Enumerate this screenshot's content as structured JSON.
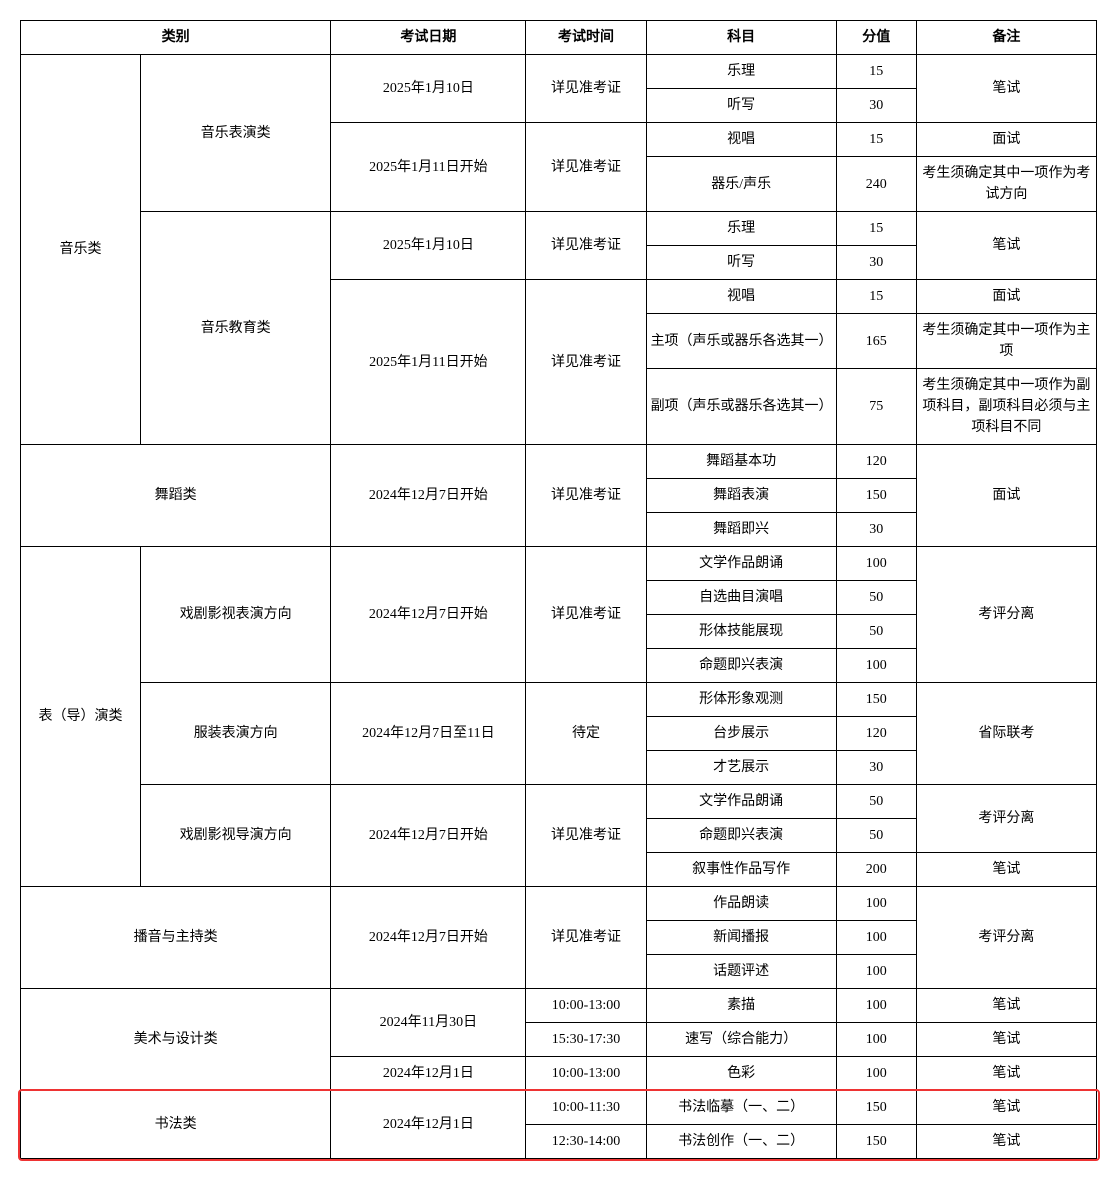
{
  "table": {
    "headers": {
      "category": "类别",
      "exam_date": "考试日期",
      "exam_time": "考试时间",
      "subject": "科目",
      "score": "分值",
      "remark": "备注"
    },
    "rows": [
      {
        "cat1": "音乐类",
        "cat2": "音乐表演类",
        "date": "2025年1月10日",
        "time": "详见准考证",
        "subject": "乐理",
        "score": "15",
        "remark": "笔试"
      },
      {
        "subject": "听写",
        "score": "30"
      },
      {
        "date": "2025年1月11日开始",
        "time": "详见准考证",
        "subject": "视唱",
        "score": "15",
        "remark": "面试"
      },
      {
        "subject": "器乐/声乐",
        "score": "240",
        "remark": "考生须确定其中一项作为考试方向"
      },
      {
        "cat2": "音乐教育类",
        "date": "2025年1月10日",
        "time": "详见准考证",
        "subject": "乐理",
        "score": "15",
        "remark": "笔试"
      },
      {
        "subject": "听写",
        "score": "30"
      },
      {
        "date": "2025年1月11日开始",
        "time": "详见准考证",
        "subject": "视唱",
        "score": "15",
        "remark": "面试"
      },
      {
        "subject": "主项（声乐或器乐各选其一）",
        "score": "165",
        "remark": "考生须确定其中一项作为主项"
      },
      {
        "subject": "副项（声乐或器乐各选其一）",
        "score": "75",
        "remark": "考生须确定其中一项作为副项科目，副项科目必须与主项科目不同"
      },
      {
        "cat1": "舞蹈类",
        "date": "2024年12月7日开始",
        "time": "详见准考证",
        "subject": "舞蹈基本功",
        "score": "120",
        "remark": "面试"
      },
      {
        "subject": "舞蹈表演",
        "score": "150"
      },
      {
        "subject": "舞蹈即兴",
        "score": "30"
      },
      {
        "cat1": "表（导）演类",
        "cat2": "戏剧影视表演方向",
        "date": "2024年12月7日开始",
        "time": "详见准考证",
        "subject": "文学作品朗诵",
        "score": "100",
        "remark": "考评分离"
      },
      {
        "subject": "自选曲目演唱",
        "score": "50"
      },
      {
        "subject": "形体技能展现",
        "score": "50"
      },
      {
        "subject": "命题即兴表演",
        "score": "100"
      },
      {
        "cat2": "服装表演方向",
        "date": "2024年12月7日至11日",
        "time": "待定",
        "subject": "形体形象观测",
        "score": "150",
        "remark": "省际联考"
      },
      {
        "subject": "台步展示",
        "score": "120"
      },
      {
        "subject": "才艺展示",
        "score": "30"
      },
      {
        "cat2": "戏剧影视导演方向",
        "date": "2024年12月7日开始",
        "time": "详见准考证",
        "subject": "文学作品朗诵",
        "score": "50",
        "remark": "考评分离"
      },
      {
        "subject": "命题即兴表演",
        "score": "50"
      },
      {
        "subject": "叙事性作品写作",
        "score": "200",
        "remark": "笔试"
      },
      {
        "cat1": "播音与主持类",
        "date": "2024年12月7日开始",
        "time": "详见准考证",
        "subject": "作品朗读",
        "score": "100",
        "remark": "考评分离"
      },
      {
        "subject": "新闻播报",
        "score": "100"
      },
      {
        "subject": "话题评述",
        "score": "100"
      },
      {
        "cat1": "美术与设计类",
        "date": "2024年11月30日",
        "time": "10:00-13:00",
        "subject": "素描",
        "score": "100",
        "remark": "笔试"
      },
      {
        "time": "15:30-17:30",
        "subject": "速写（综合能力）",
        "score": "100",
        "remark": "笔试"
      },
      {
        "date": "2024年12月1日",
        "time": "10:00-13:00",
        "subject": "色彩",
        "score": "100",
        "remark": "笔试"
      },
      {
        "cat1": "书法类",
        "date": "2024年12月1日",
        "time": "10:00-11:30",
        "subject": "书法临摹（一、二）",
        "score": "150",
        "remark": "笔试"
      },
      {
        "time": "12:30-14:00",
        "subject": "书法创作（一、二）",
        "score": "150",
        "remark": "笔试"
      }
    ],
    "highlight_color": "#ee3333"
  }
}
